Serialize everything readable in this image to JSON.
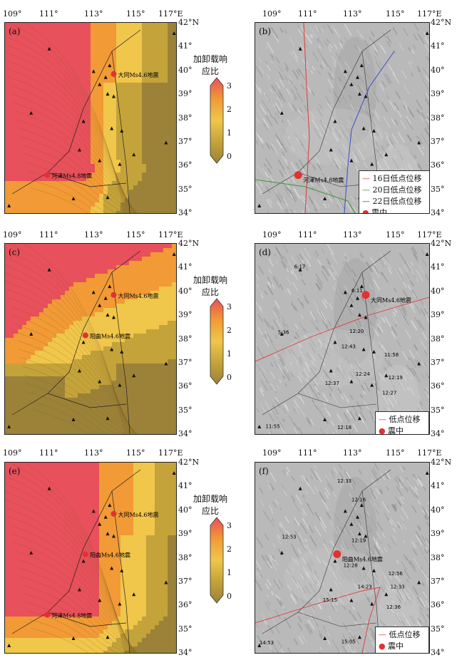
{
  "lon_ticks": [
    "109°",
    "111°",
    "113°",
    "115°",
    "117°E"
  ],
  "lat_ticks": [
    "42°N",
    "41°",
    "40°",
    "39°",
    "38°",
    "37°",
    "36°",
    "35°",
    "34°"
  ],
  "colorbar": {
    "title_line1": "加卸载响",
    "title_line2": "应比",
    "ticks": [
      "3",
      "2",
      "1",
      "0"
    ],
    "colors": [
      "#e8505b",
      "#f19a36",
      "#f0c64b",
      "#c4a33a",
      "#9c8238"
    ]
  },
  "panels": {
    "a": {
      "label": "(a)",
      "earthquakes": [
        {
          "name": "大同Ms4.6地震",
          "lon": 113.9,
          "lat": 39.85
        },
        {
          "name": "河津Ms4.8地震",
          "lon": 110.6,
          "lat": 35.6
        }
      ]
    },
    "b": {
      "label": "(b)",
      "earthquake_label": "河津Ms4.8地震",
      "epicenter": {
        "lon": 110.6,
        "lat": 35.6
      },
      "legend": [
        "16日低点位移",
        "20日低点位移",
        "22日低点位移",
        "震中"
      ],
      "line_colors": [
        "#e03a3a",
        "#3a9a3a",
        "#3a4fc8"
      ]
    },
    "c": {
      "label": "(c)",
      "earthquakes": [
        {
          "name": "大同Ms4.6地震",
          "lon": 113.9,
          "lat": 39.85
        },
        {
          "name": "阳曲Ms4.6地震",
          "lon": 112.5,
          "lat": 38.15
        }
      ]
    },
    "d": {
      "label": "(d)",
      "earthquake_label": "大同Ms4.6地震",
      "epicenter": {
        "lon": 113.9,
        "lat": 39.85
      },
      "legend": [
        "低点位移",
        "震中"
      ],
      "times": [
        {
          "t": "6:17",
          "lon": 110.3,
          "lat": 41.05
        },
        {
          "t": "6:11",
          "lon": 113.1,
          "lat": 40.05
        },
        {
          "t": "5:36",
          "lon": 109.5,
          "lat": 38.3
        },
        {
          "t": "12:20",
          "lon": 113.0,
          "lat": 38.35
        },
        {
          "t": "12:43",
          "lon": 112.6,
          "lat": 37.7
        },
        {
          "t": "11:58",
          "lon": 114.7,
          "lat": 37.35
        },
        {
          "t": "12:24",
          "lon": 113.3,
          "lat": 36.55
        },
        {
          "t": "12:19",
          "lon": 114.9,
          "lat": 36.4
        },
        {
          "t": "12:37",
          "lon": 111.8,
          "lat": 36.15
        },
        {
          "t": "12:27",
          "lon": 114.6,
          "lat": 35.75
        },
        {
          "t": "11:55",
          "lon": 108.9,
          "lat": 34.35
        },
        {
          "t": "12:18",
          "lon": 112.4,
          "lat": 34.3
        }
      ]
    },
    "e": {
      "label": "(e)",
      "earthquakes": [
        {
          "name": "大同Ms4.6地震",
          "lon": 113.9,
          "lat": 39.85
        },
        {
          "name": "阳曲Ms4.6地震",
          "lon": 112.5,
          "lat": 38.15
        },
        {
          "name": "河津Ms4.8地震",
          "lon": 110.6,
          "lat": 35.6
        }
      ]
    },
    "f": {
      "label": "(f)",
      "earthquake_label": "阳曲Ms4.6地震",
      "epicenter": {
        "lon": 112.5,
        "lat": 38.15
      },
      "legend": [
        "低点位移",
        "震中"
      ],
      "times": [
        {
          "t": "12:33",
          "lon": 112.4,
          "lat": 41.25
        },
        {
          "t": "12:16",
          "lon": 113.1,
          "lat": 40.45
        },
        {
          "t": "12:53",
          "lon": 109.7,
          "lat": 38.9
        },
        {
          "t": "12:19",
          "lon": 113.1,
          "lat": 38.75
        },
        {
          "t": "12:28",
          "lon": 112.7,
          "lat": 37.7
        },
        {
          "t": "12:56",
          "lon": 114.9,
          "lat": 37.35
        },
        {
          "t": "14:23",
          "lon": 113.4,
          "lat": 36.8
        },
        {
          "t": "12:33",
          "lon": 115.0,
          "lat": 36.8
        },
        {
          "t": "15:15",
          "lon": 111.7,
          "lat": 36.25
        },
        {
          "t": "12:36",
          "lon": 114.8,
          "lat": 35.95
        },
        {
          "t": "14:53",
          "lon": 108.6,
          "lat": 34.45
        },
        {
          "t": "15:05",
          "lon": 112.6,
          "lat": 34.5
        }
      ]
    }
  },
  "stations": [
    {
      "lon": 116.9,
      "lat": 41.55
    },
    {
      "lon": 110.7,
      "lat": 40.9
    },
    {
      "lon": 113.7,
      "lat": 40.2
    },
    {
      "lon": 112.9,
      "lat": 39.95
    },
    {
      "lon": 113.5,
      "lat": 39.7
    },
    {
      "lon": 113.2,
      "lat": 39.4
    },
    {
      "lon": 113.6,
      "lat": 39.0
    },
    {
      "lon": 113.9,
      "lat": 38.9
    },
    {
      "lon": 109.8,
      "lat": 38.2
    },
    {
      "lon": 112.4,
      "lat": 37.85
    },
    {
      "lon": 113.8,
      "lat": 37.55
    },
    {
      "lon": 114.3,
      "lat": 37.45
    },
    {
      "lon": 112.2,
      "lat": 36.65
    },
    {
      "lon": 114.9,
      "lat": 36.45
    },
    {
      "lon": 113.2,
      "lat": 36.2
    },
    {
      "lon": 114.2,
      "lat": 36.05
    },
    {
      "lon": 108.7,
      "lat": 34.3
    },
    {
      "lon": 111.9,
      "lat": 34.6
    },
    {
      "lon": 113.6,
      "lat": 34.65
    },
    {
      "lon": 116.5,
      "lat": 36.95
    }
  ]
}
